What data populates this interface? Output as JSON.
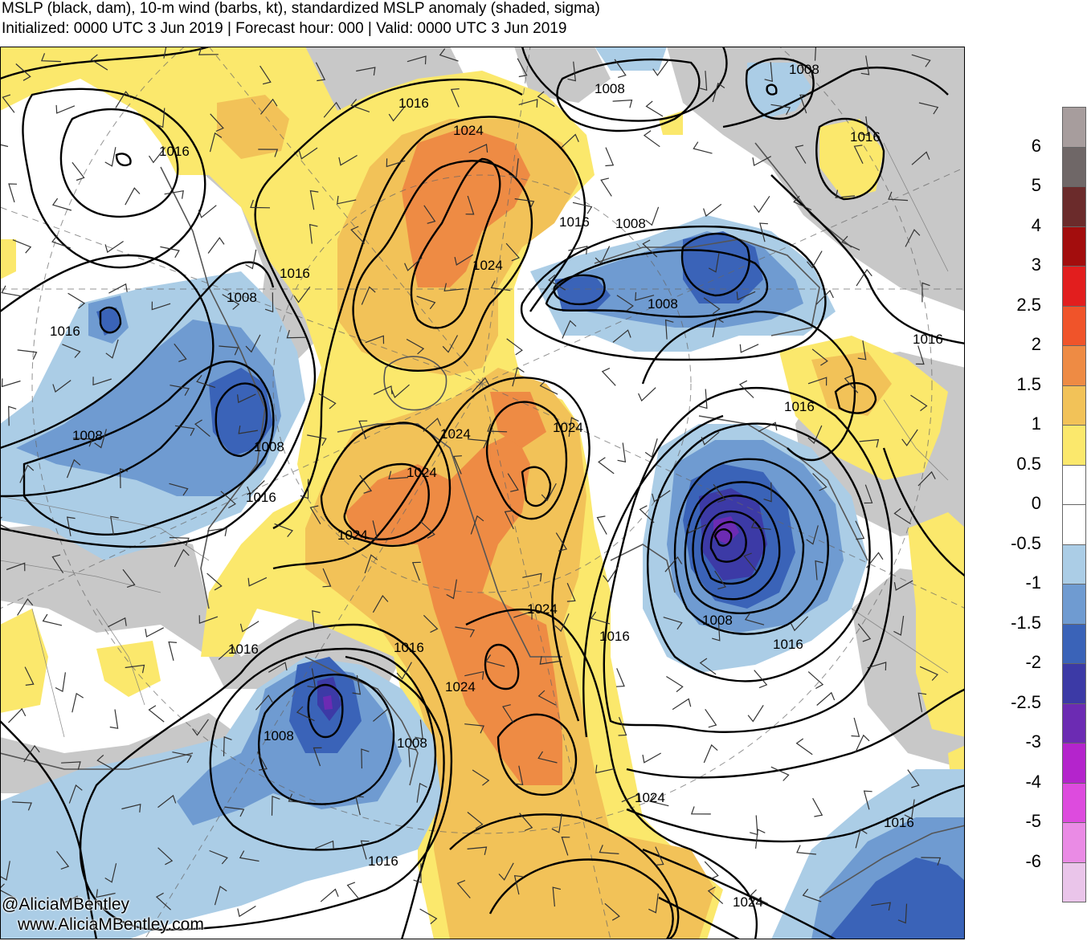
{
  "header": {
    "line1": "MSLP (black, dam), 10-m wind (barbs, kt), standardized MSLP anomaly (shaded, sigma)",
    "line2": "Initialized: 0000 UTC 3 Jun 2019 | Forecast hour: 000 | Valid: 0000 UTC 3 Jun 2019"
  },
  "credits": {
    "handle": "@AliciaMBentley",
    "site": "www.AliciaMBentley.com"
  },
  "colorbar": {
    "labels": [
      "6",
      "5",
      "4",
      "3",
      "2.5",
      "2",
      "1.5",
      "1",
      "0.5",
      "0",
      "-0.5",
      "-1",
      "-1.5",
      "-2",
      "-2.5",
      "-3",
      "-4",
      "-5",
      "-6"
    ],
    "colors": [
      "#a79d9d",
      "#6f6767",
      "#6b2b2b",
      "#a30d0d",
      "#e21e1e",
      "#f0542a",
      "#ee8b44",
      "#f2c258",
      "#fbe86c",
      "#ffffff",
      "#ffffff",
      "#abcde6",
      "#6f9bd1",
      "#3a63b8",
      "#3c3aa6",
      "#6c2bb3",
      "#b424cc",
      "#dd4bde",
      "#ea8be5",
      "#eac5ea"
    ]
  },
  "contour_labels": [
    "1016",
    "1008",
    "1024"
  ],
  "colors": {
    "land_gray": "#c8c8c8",
    "contour": "#000000",
    "coast": "#555555"
  }
}
